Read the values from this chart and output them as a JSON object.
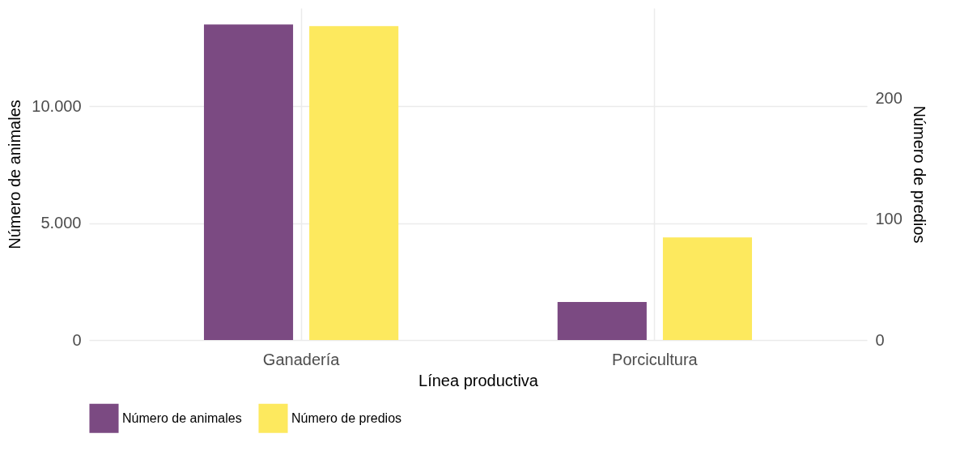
{
  "chart_data": {
    "type": "bar",
    "xlabel": "Línea productiva",
    "ylabel": "Número de animales",
    "y2label": "Número de predios",
    "categories": [
      "Ganadería",
      "Porcicultura"
    ],
    "series": [
      {
        "name": "Número de animales",
        "color": "#7b4a82",
        "values": [
          13500,
          1630
        ]
      },
      {
        "name": "Número de predios",
        "color": "#fde95e",
        "values": [
          260,
          85
        ],
        "axis": "y2"
      }
    ],
    "ylim": [
      0,
      14200
    ],
    "yticks": [
      0,
      {
        "value": 5000,
        "label": "5.000"
      },
      {
        "value": 10000,
        "label": "10.000"
      }
    ],
    "y2lim": [
      0,
      275
    ],
    "y2ticks": [
      0,
      100,
      200
    ],
    "grid": true,
    "legend": "bottom"
  }
}
